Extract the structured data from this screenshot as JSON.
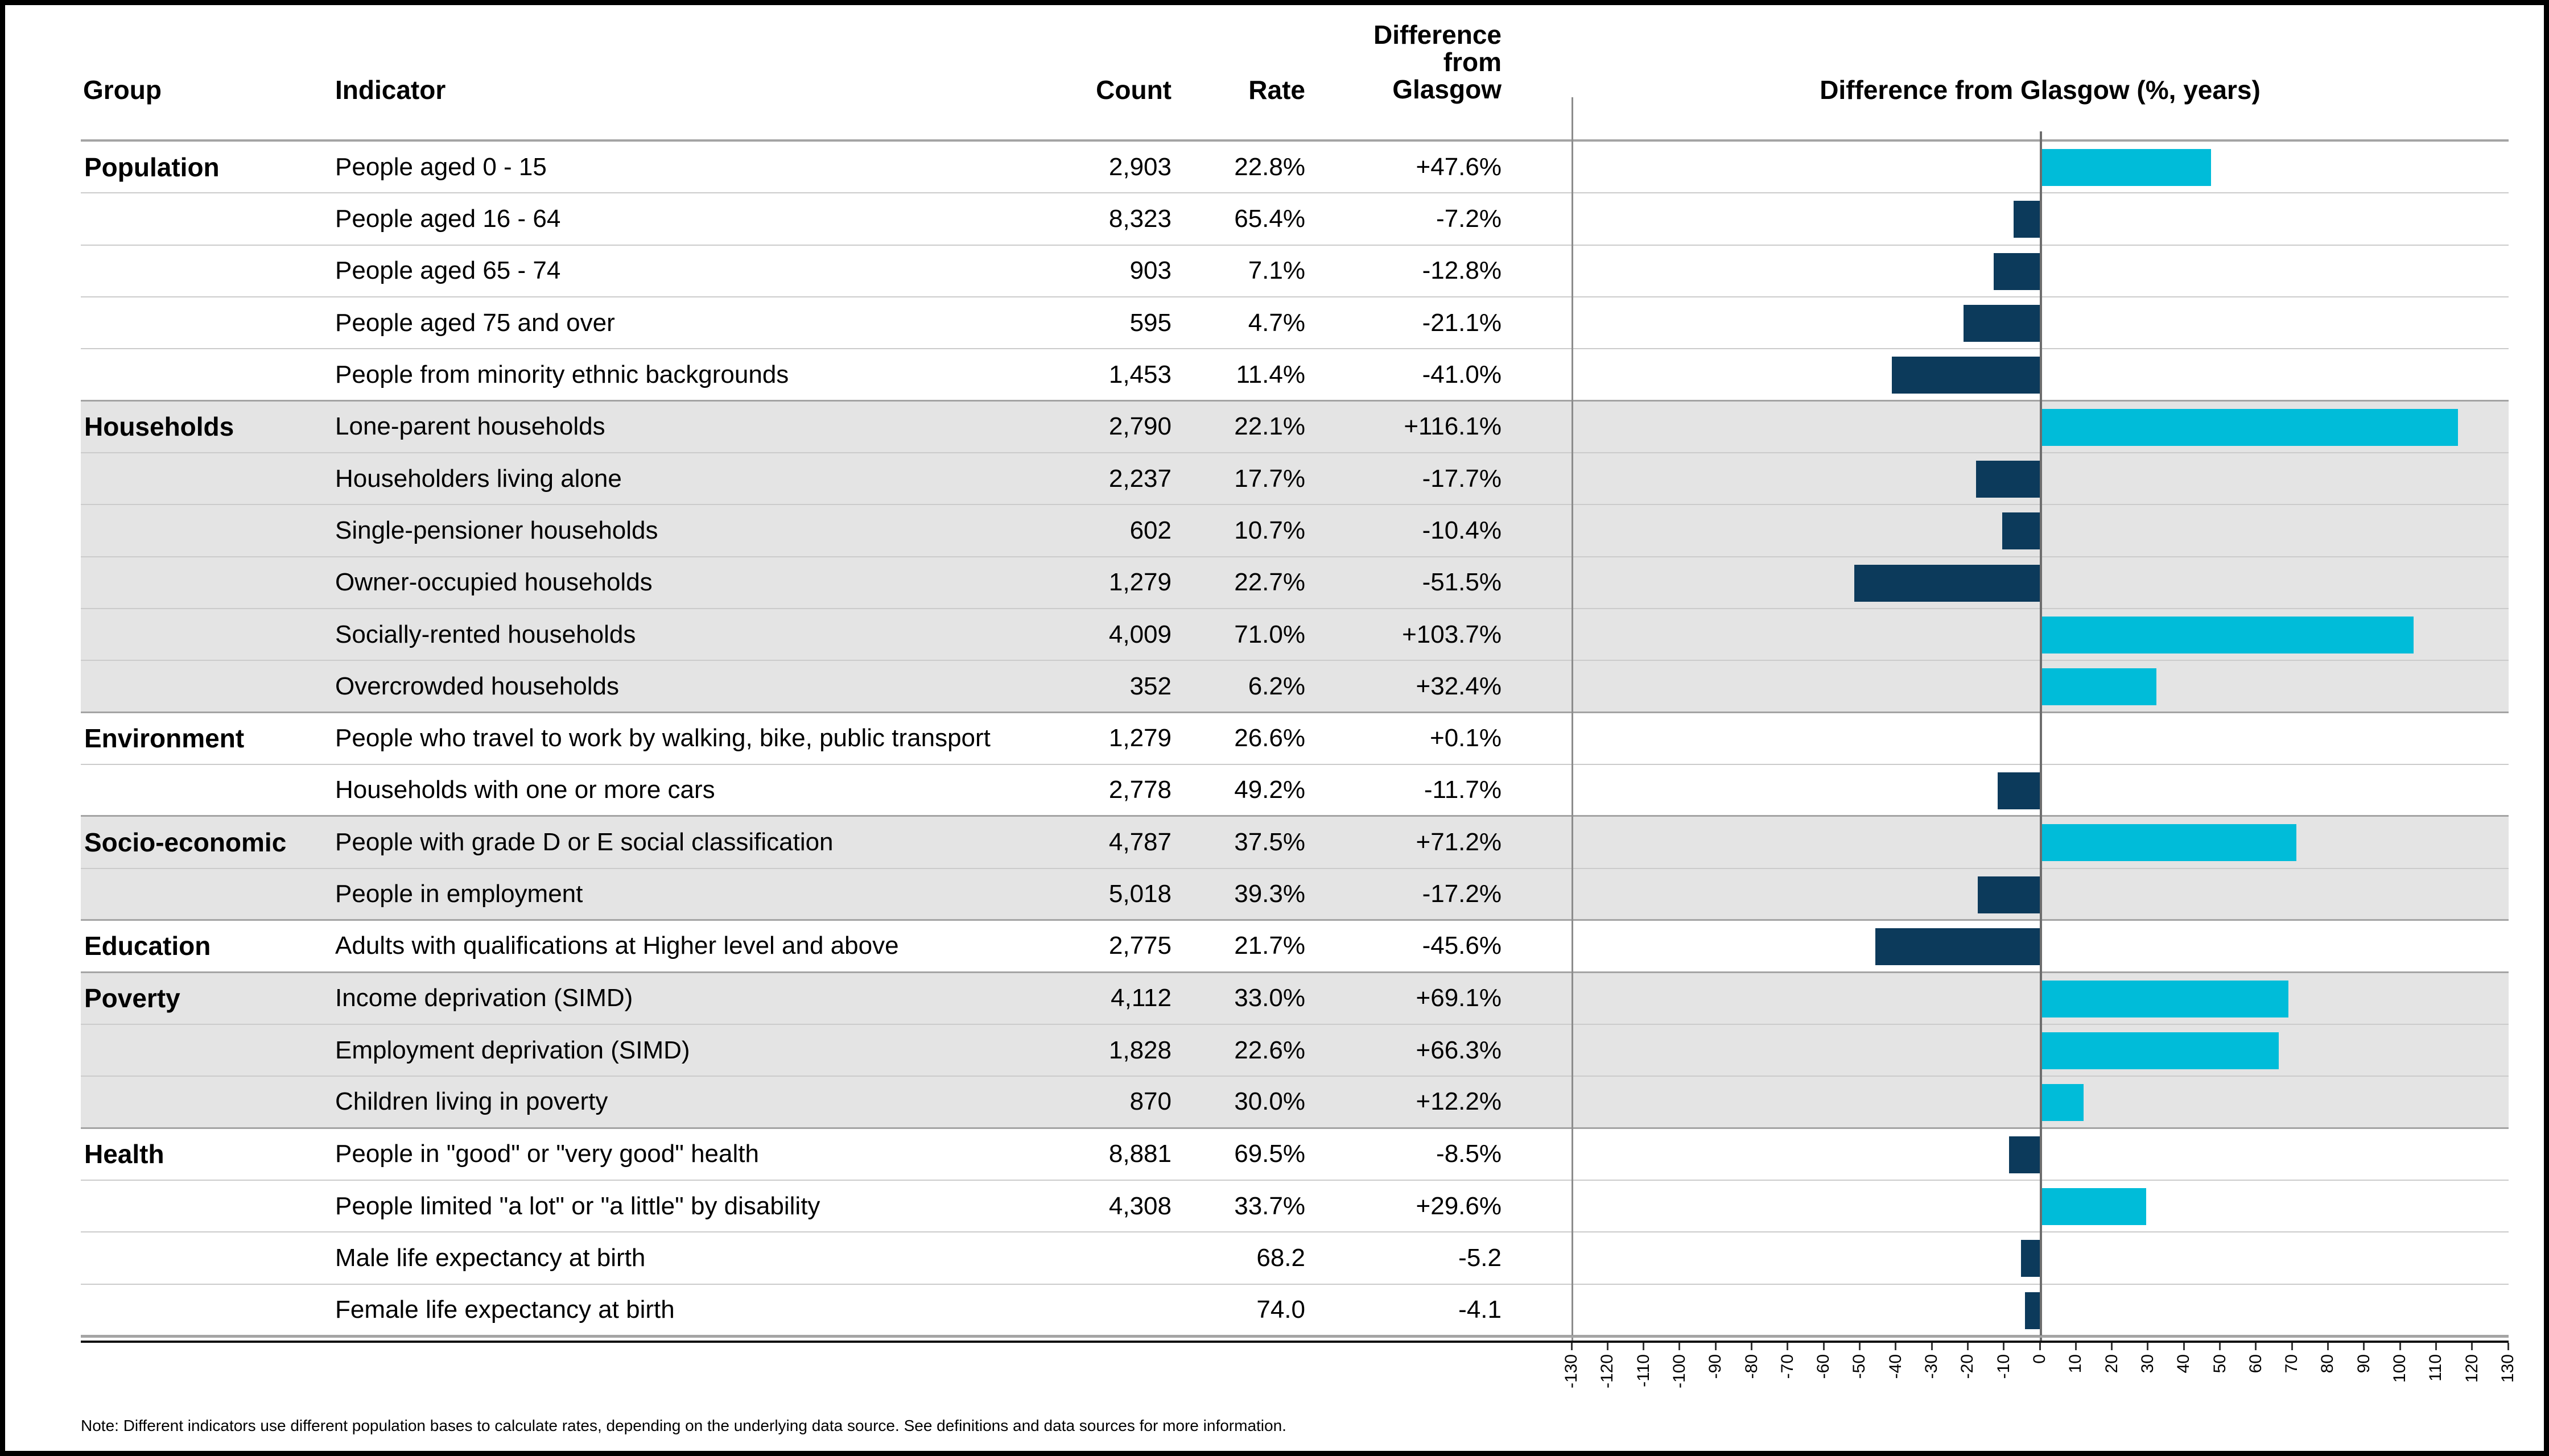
{
  "table": {
    "headers": {
      "group": "Group",
      "indicator": "Indicator",
      "count": "Count",
      "rate": "Rate",
      "difference": "Difference\nfrom\nGlasgow"
    },
    "rows": [
      {
        "group": "Population",
        "indicator": "People aged 0 - 15",
        "count": "2,903",
        "rate": "22.8%",
        "diff": "+47.6%",
        "value": 47.6,
        "shaded": false
      },
      {
        "group": "",
        "indicator": "People aged 16 - 64",
        "count": "8,323",
        "rate": "65.4%",
        "diff": "-7.2%",
        "value": -7.2,
        "shaded": false
      },
      {
        "group": "",
        "indicator": "People aged 65 - 74",
        "count": "903",
        "rate": "7.1%",
        "diff": "-12.8%",
        "value": -12.8,
        "shaded": false
      },
      {
        "group": "",
        "indicator": "People aged 75 and over",
        "count": "595",
        "rate": "4.7%",
        "diff": "-21.1%",
        "value": -21.1,
        "shaded": false
      },
      {
        "group": "",
        "indicator": "People from minority ethnic backgrounds",
        "count": "1,453",
        "rate": "11.4%",
        "diff": "-41.0%",
        "value": -41.0,
        "shaded": false
      },
      {
        "group": "Households",
        "indicator": "Lone-parent households",
        "count": "2,790",
        "rate": "22.1%",
        "diff": "+116.1%",
        "value": 116.1,
        "shaded": true
      },
      {
        "group": "",
        "indicator": "Householders living alone",
        "count": "2,237",
        "rate": "17.7%",
        "diff": "-17.7%",
        "value": -17.7,
        "shaded": true
      },
      {
        "group": "",
        "indicator": "Single-pensioner households",
        "count": "602",
        "rate": "10.7%",
        "diff": "-10.4%",
        "value": -10.4,
        "shaded": true
      },
      {
        "group": "",
        "indicator": "Owner-occupied households",
        "count": "1,279",
        "rate": "22.7%",
        "diff": "-51.5%",
        "value": -51.5,
        "shaded": true
      },
      {
        "group": "",
        "indicator": "Socially-rented households",
        "count": "4,009",
        "rate": "71.0%",
        "diff": "+103.7%",
        "value": 103.7,
        "shaded": true
      },
      {
        "group": "",
        "indicator": "Overcrowded households",
        "count": "352",
        "rate": "6.2%",
        "diff": "+32.4%",
        "value": 32.4,
        "shaded": true
      },
      {
        "group": "Environment",
        "indicator": "People who travel to work by walking, bike, public transport",
        "count": "1,279",
        "rate": "26.6%",
        "diff": "+0.1%",
        "value": 0.1,
        "shaded": false
      },
      {
        "group": "",
        "indicator": "Households with one or more cars",
        "count": "2,778",
        "rate": "49.2%",
        "diff": "-11.7%",
        "value": -11.7,
        "shaded": false
      },
      {
        "group": "Socio-economic",
        "indicator": "People with grade D or E social classification",
        "count": "4,787",
        "rate": "37.5%",
        "diff": "+71.2%",
        "value": 71.2,
        "shaded": true
      },
      {
        "group": "",
        "indicator": "People in employment",
        "count": "5,018",
        "rate": "39.3%",
        "diff": "-17.2%",
        "value": -17.2,
        "shaded": true
      },
      {
        "group": "Education",
        "indicator": "Adults with qualifications at Higher level and above",
        "count": "2,775",
        "rate": "21.7%",
        "diff": "-45.6%",
        "value": -45.6,
        "shaded": false
      },
      {
        "group": "Poverty",
        "indicator": "Income deprivation (SIMD)",
        "count": "4,112",
        "rate": "33.0%",
        "diff": "+69.1%",
        "value": 69.1,
        "shaded": true
      },
      {
        "group": "",
        "indicator": "Employment deprivation (SIMD)",
        "count": "1,828",
        "rate": "22.6%",
        "diff": "+66.3%",
        "value": 66.3,
        "shaded": true
      },
      {
        "group": "",
        "indicator": "Children living in poverty",
        "count": "870",
        "rate": "30.0%",
        "diff": "+12.2%",
        "value": 12.2,
        "shaded": true
      },
      {
        "group": "Health",
        "indicator": "People in \"good\" or \"very good\" health",
        "count": "8,881",
        "rate": "69.5%",
        "diff": "-8.5%",
        "value": -8.5,
        "shaded": false
      },
      {
        "group": "",
        "indicator": "People limited \"a lot\" or \"a little\" by disability",
        "count": "4,308",
        "rate": "33.7%",
        "diff": "+29.6%",
        "value": 29.6,
        "shaded": false
      },
      {
        "group": "",
        "indicator": "Male life expectancy at birth",
        "count": "",
        "rate": "68.2",
        "diff": "-5.2",
        "value": -5.2,
        "shaded": false
      },
      {
        "group": "",
        "indicator": "Female life expectancy at birth",
        "count": "",
        "rate": "74.0",
        "diff": "-4.1",
        "value": -4.1,
        "shaded": false
      }
    ]
  },
  "chart_data": {
    "type": "bar",
    "orientation": "horizontal",
    "title": "Difference from Glasgow (%, years)",
    "xlabel": "",
    "ylabel": "",
    "xlim": [
      -130,
      130
    ],
    "x_tick_step": 10,
    "grid": "row-separators",
    "legend": "none",
    "categories": [
      "People aged 0 - 15",
      "People aged 16 - 64",
      "People aged 65 - 74",
      "People aged 75 and over",
      "People from minority ethnic backgrounds",
      "Lone-parent households",
      "Householders living alone",
      "Single-pensioner households",
      "Owner-occupied households",
      "Socially-rented households",
      "Overcrowded households",
      "People who travel to work by walking, bike, public transport",
      "Households with one or more cars",
      "People with grade D or E social classification",
      "People in employment",
      "Adults with qualifications at Higher level and above",
      "Income deprivation (SIMD)",
      "Employment deprivation (SIMD)",
      "Children living in poverty",
      "People in \"good\" or \"very good\" health",
      "People limited \"a lot\" or \"a little\" by disability",
      "Male life expectancy at birth",
      "Female life expectancy at birth"
    ],
    "values": [
      47.6,
      -7.2,
      -12.8,
      -21.1,
      -41.0,
      116.1,
      -17.7,
      -10.4,
      -51.5,
      103.7,
      32.4,
      0.1,
      -11.7,
      71.2,
      -17.2,
      -45.6,
      69.1,
      66.3,
      12.2,
      -8.5,
      29.6,
      -5.2,
      -4.1
    ],
    "positive_color": "#00BCD9",
    "negative_color": "#0C3A5B",
    "shaded_row_color": "#E4E4E4"
  },
  "note": "Note: Different indicators use different population bases to calculate rates, depending on the underlying data source. See definitions and data sources for more information."
}
